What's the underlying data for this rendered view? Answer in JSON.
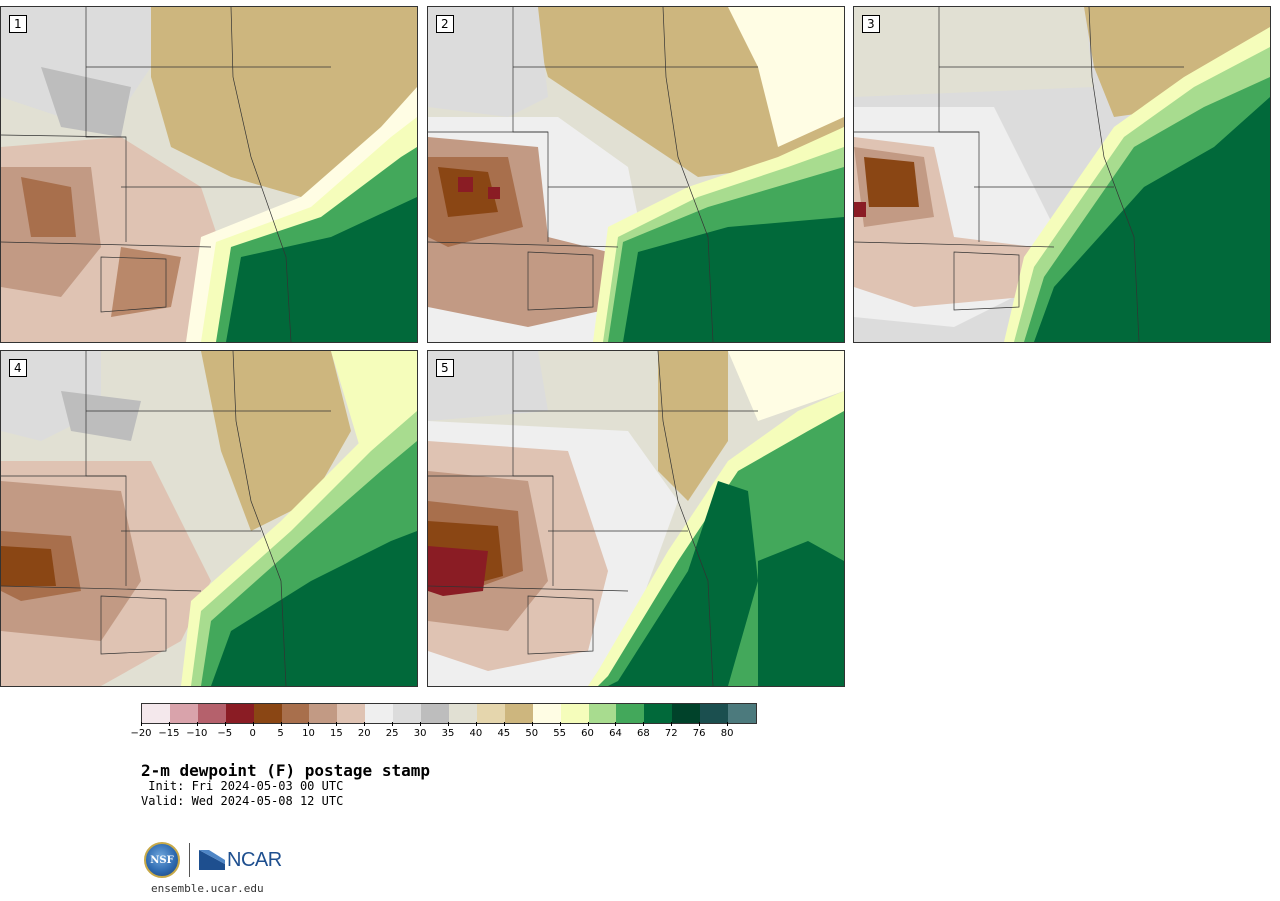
{
  "panels": [
    {
      "label": "1"
    },
    {
      "label": "2"
    },
    {
      "label": "3"
    },
    {
      "label": "4"
    },
    {
      "label": "5"
    }
  ],
  "colorbar": {
    "colors": [
      "#f4e8ec",
      "#d9a3ab",
      "#b5616c",
      "#8a1c24",
      "#8a4614",
      "#a86f4c",
      "#c29a84",
      "#dfc3b3",
      "#efefef",
      "#dcdcdc",
      "#bdbdbd",
      "#e1e0d3",
      "#e5d6ad",
      "#cdb67e",
      "#fffde4",
      "#f5fdbb",
      "#a8dc8f",
      "#43a85b",
      "#01693a",
      "#00422a",
      "#1b4f4f",
      "#4c7a7d"
    ],
    "tick_labels": [
      "−20",
      "−15",
      "−10",
      "−5",
      "0",
      "5",
      "10",
      "15",
      "20",
      "25",
      "30",
      "35",
      "40",
      "45",
      "50",
      "55",
      "60",
      "64",
      "68",
      "72",
      "76",
      "80"
    ]
  },
  "title": "2-m dewpoint (F) postage stamp",
  "init": " Init: Fri 2024-05-03 00 UTC",
  "valid": "Valid: Wed 2024-05-08 12 UTC",
  "logos": {
    "nsf": "NSF",
    "ncar": "NCAR"
  },
  "site": "ensemble.ucar.edu"
}
